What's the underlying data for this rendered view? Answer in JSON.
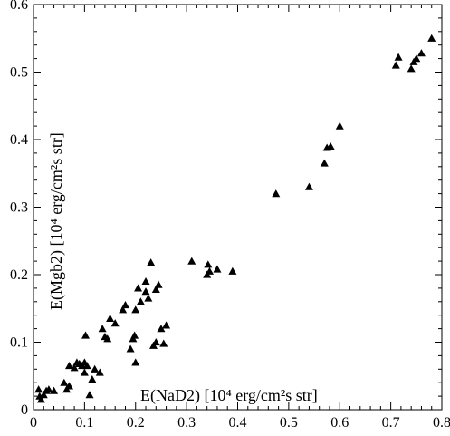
{
  "chart_data": {
    "type": "scatter",
    "xlabel": "E(NaD2) [10⁴ erg/cm²s str]",
    "ylabel": "E(Mgb2) [10⁴ erg/cm²s str]",
    "xlim": [
      0,
      0.8
    ],
    "ylim": [
      0,
      0.6
    ],
    "x_ticks": [
      "0",
      "0.1",
      "0.2",
      "0.3",
      "0.4",
      "0.5",
      "0.6",
      "0.7",
      "0.8"
    ],
    "y_ticks": [
      "0",
      "0.1",
      "0.2",
      "0.3",
      "0.4",
      "0.5",
      "0.6"
    ],
    "grid": false,
    "marker": "filled-triangle",
    "series": [
      {
        "points": [
          [
            0.01,
            0.03
          ],
          [
            0.012,
            0.02
          ],
          [
            0.015,
            0.015
          ],
          [
            0.02,
            0.022
          ],
          [
            0.025,
            0.028
          ],
          [
            0.03,
            0.03
          ],
          [
            0.04,
            0.028
          ],
          [
            0.06,
            0.04
          ],
          [
            0.065,
            0.03
          ],
          [
            0.07,
            0.035
          ],
          [
            0.07,
            0.065
          ],
          [
            0.08,
            0.062
          ],
          [
            0.085,
            0.07
          ],
          [
            0.09,
            0.068
          ],
          [
            0.095,
            0.065
          ],
          [
            0.1,
            0.055
          ],
          [
            0.1,
            0.07
          ],
          [
            0.102,
            0.11
          ],
          [
            0.105,
            0.065
          ],
          [
            0.11,
            0.022
          ],
          [
            0.115,
            0.045
          ],
          [
            0.12,
            0.06
          ],
          [
            0.13,
            0.055
          ],
          [
            0.135,
            0.12
          ],
          [
            0.14,
            0.108
          ],
          [
            0.145,
            0.105
          ],
          [
            0.15,
            0.135
          ],
          [
            0.16,
            0.128
          ],
          [
            0.175,
            0.148
          ],
          [
            0.18,
            0.155
          ],
          [
            0.19,
            0.09
          ],
          [
            0.195,
            0.105
          ],
          [
            0.198,
            0.11
          ],
          [
            0.2,
            0.07
          ],
          [
            0.2,
            0.148
          ],
          [
            0.205,
            0.18
          ],
          [
            0.21,
            0.16
          ],
          [
            0.22,
            0.175
          ],
          [
            0.22,
            0.19
          ],
          [
            0.225,
            0.165
          ],
          [
            0.23,
            0.218
          ],
          [
            0.235,
            0.095
          ],
          [
            0.24,
            0.178
          ],
          [
            0.24,
            0.1
          ],
          [
            0.245,
            0.185
          ],
          [
            0.25,
            0.12
          ],
          [
            0.255,
            0.098
          ],
          [
            0.26,
            0.125
          ],
          [
            0.31,
            0.22
          ],
          [
            0.34,
            0.2
          ],
          [
            0.342,
            0.215
          ],
          [
            0.345,
            0.205
          ],
          [
            0.36,
            0.208
          ],
          [
            0.39,
            0.205
          ],
          [
            0.475,
            0.32
          ],
          [
            0.54,
            0.33
          ],
          [
            0.57,
            0.365
          ],
          [
            0.575,
            0.388
          ],
          [
            0.582,
            0.39
          ],
          [
            0.6,
            0.42
          ],
          [
            0.71,
            0.51
          ],
          [
            0.715,
            0.522
          ],
          [
            0.74,
            0.505
          ],
          [
            0.745,
            0.515
          ],
          [
            0.75,
            0.52
          ],
          [
            0.76,
            0.528
          ],
          [
            0.78,
            0.55
          ]
        ]
      }
    ]
  }
}
